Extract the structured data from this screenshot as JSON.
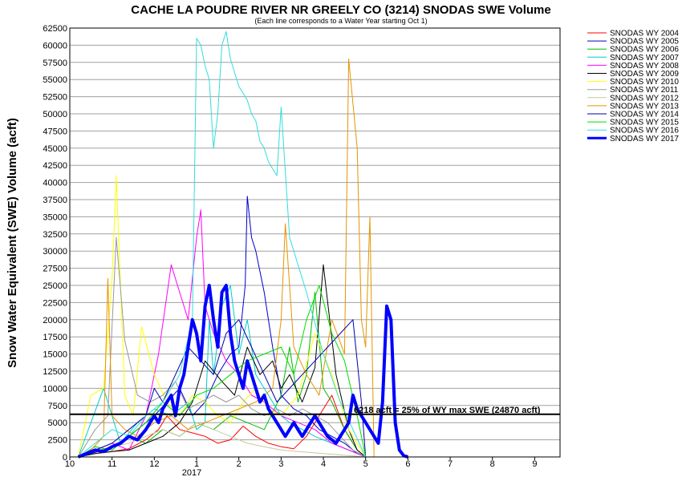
{
  "chart_data": {
    "type": "line",
    "title": "CACHE LA POUDRE RIVER NR GREELY CO (3214) SNODAS SWE Volume",
    "subtitle": "(Each line corresponds to a Water Year starting Oct 1)",
    "ylabel": "Snow Water Equivalent (SWE) Volume (acft)",
    "xlabel": "",
    "ylim": [
      0,
      62500
    ],
    "yticks": [
      0,
      2500,
      5000,
      7500,
      10000,
      12500,
      15000,
      17500,
      20000,
      22500,
      25000,
      27500,
      30000,
      32500,
      35000,
      37500,
      40000,
      42500,
      45000,
      47500,
      50000,
      52500,
      55000,
      57500,
      60000,
      62500
    ],
    "xlim": [
      0,
      11.6
    ],
    "xticks": [
      {
        "pos": 0,
        "label": "10"
      },
      {
        "pos": 1,
        "label": "11"
      },
      {
        "pos": 2,
        "label": "12"
      },
      {
        "pos": 3,
        "label": "1"
      },
      {
        "pos": 4,
        "label": "2"
      },
      {
        "pos": 5,
        "label": "3"
      },
      {
        "pos": 6,
        "label": "4"
      },
      {
        "pos": 7,
        "label": "5"
      },
      {
        "pos": 8,
        "label": "6"
      },
      {
        "pos": 9,
        "label": "7"
      },
      {
        "pos": 10,
        "label": "8"
      },
      {
        "pos": 11,
        "label": "9"
      }
    ],
    "x_secondary_label": "2017",
    "grid": true,
    "legend_placement": "right",
    "threshold": {
      "value": 6218,
      "label": "6218 acft = 25% of WY max SWE (24870 acft)"
    },
    "series": [
      {
        "name": "SNODAS WY 2004",
        "color": "#ff0000",
        "width": 1,
        "x": [
          0.2,
          0.6,
          1.0,
          1.4,
          1.8,
          2.1,
          2.3,
          2.6,
          2.9,
          3.2,
          3.5,
          3.8,
          4.1,
          4.4,
          4.7,
          5.0,
          5.3,
          5.6,
          5.9,
          6.2,
          6.5,
          6.8,
          7.0
        ],
        "y": [
          0,
          500,
          800,
          1200,
          2500,
          4000,
          6000,
          4000,
          3500,
          3000,
          2000,
          2500,
          4500,
          3000,
          2000,
          1500,
          1200,
          3000,
          6000,
          9000,
          4000,
          1000,
          0
        ]
      },
      {
        "name": "SNODAS WY 2005",
        "color": "#0000cc",
        "width": 1,
        "x": [
          0.2,
          0.8,
          1.2,
          1.6,
          2.0,
          2.3,
          2.6,
          2.9,
          3.2,
          3.5,
          3.8,
          4.0,
          4.15,
          4.2,
          4.3,
          4.4,
          4.6,
          4.8,
          5.0,
          5.3,
          5.6,
          5.9,
          6.2,
          6.5,
          6.8,
          7.0
        ],
        "y": [
          0,
          1000,
          2000,
          4000,
          6000,
          8000,
          10000,
          6000,
          8000,
          12000,
          15000,
          16000,
          25000,
          38000,
          32000,
          30000,
          24000,
          16000,
          9000,
          7000,
          6000,
          4000,
          3000,
          2000,
          500,
          0
        ]
      },
      {
        "name": "SNODAS WY 2006",
        "color": "#00bb00",
        "width": 1,
        "x": [
          0.2,
          0.6,
          1.0,
          1.4,
          1.8,
          2.2,
          2.6,
          3.0,
          3.4,
          3.8,
          4.2,
          4.6,
          5.0,
          5.2,
          5.4,
          5.6,
          5.8,
          6.0,
          6.2,
          6.5,
          6.8,
          7.0
        ],
        "y": [
          0,
          1500,
          1000,
          3000,
          2000,
          4000,
          3000,
          5000,
          4000,
          6000,
          5000,
          4000,
          9000,
          16000,
          8000,
          12000,
          24000,
          10000,
          8000,
          4000,
          1000,
          0
        ]
      },
      {
        "name": "SNODAS WY 2007",
        "color": "#00cccc",
        "width": 1,
        "x": [
          0.2,
          0.8,
          1.2,
          1.6,
          2.0,
          2.4,
          2.8,
          3.0,
          3.2,
          3.3,
          3.4,
          3.6,
          3.8,
          4.0,
          4.2,
          4.4,
          4.6,
          4.8,
          5.0,
          5.2,
          5.5,
          5.8,
          6.2,
          6.6,
          7.0
        ],
        "y": [
          0,
          10000,
          2000,
          5000,
          7000,
          6000,
          8000,
          4000,
          5000,
          20000,
          12000,
          22000,
          25000,
          15000,
          20000,
          12000,
          10000,
          8000,
          6000,
          5000,
          4000,
          3000,
          2000,
          1000,
          0
        ]
      },
      {
        "name": "SNODAS WY 2008",
        "color": "#ff00ff",
        "width": 1,
        "x": [
          0.2,
          0.6,
          1.0,
          1.4,
          1.8,
          2.1,
          2.4,
          2.6,
          2.8,
          3.0,
          3.1,
          3.2,
          3.4,
          3.7,
          4.0,
          4.3,
          4.6,
          5.0,
          5.4,
          5.8,
          6.2,
          6.6,
          7.0
        ],
        "y": [
          0,
          1000,
          2000,
          1000,
          6000,
          15000,
          28000,
          24000,
          20000,
          32000,
          36000,
          22000,
          18000,
          14000,
          12000,
          9000,
          8000,
          6000,
          5000,
          4000,
          2000,
          1000,
          0
        ]
      },
      {
        "name": "SNODAS WY 2009",
        "color": "#000000",
        "width": 1,
        "x": [
          0.2,
          0.6,
          1.0,
          1.4,
          1.8,
          2.2,
          2.6,
          2.9,
          3.2,
          3.6,
          3.9,
          4.2,
          4.5,
          4.8,
          5.0,
          5.2,
          5.5,
          5.8,
          6.0,
          6.3,
          6.6,
          6.8,
          7.0
        ],
        "y": [
          0,
          500,
          800,
          1000,
          2000,
          3000,
          5000,
          8000,
          14000,
          11000,
          9000,
          16000,
          12000,
          14000,
          10000,
          12000,
          8000,
          13000,
          28000,
          12000,
          4000,
          1000,
          0
        ]
      },
      {
        "name": "SNODAS WY 2010",
        "color": "#ffff00",
        "width": 1,
        "x": [
          0.2,
          0.5,
          0.8,
          1.0,
          1.1,
          1.3,
          1.5,
          1.7,
          2.0,
          2.3,
          2.6,
          2.9,
          3.2,
          3.5,
          3.8,
          4.1,
          4.4,
          4.7,
          5.0,
          5.4,
          5.8,
          6.2,
          6.6,
          7.0
        ],
        "y": [
          0,
          9000,
          10000,
          26000,
          41000,
          9000,
          6000,
          19000,
          12000,
          8000,
          6000,
          9000,
          8000,
          6000,
          5000,
          8000,
          10000,
          7000,
          6000,
          9000,
          18000,
          12000,
          4000,
          0
        ]
      },
      {
        "name": "SNODAS WY 2011",
        "color": "#999999",
        "width": 1,
        "x": [
          0.2,
          0.6,
          0.9,
          1.1,
          1.3,
          1.6,
          1.9,
          2.2,
          2.5,
          2.8,
          3.1,
          3.4,
          3.7,
          4.0,
          4.3,
          4.6,
          4.9,
          5.2,
          5.5,
          5.8,
          6.1,
          6.4,
          6.7,
          7.0
        ],
        "y": [
          0,
          4000,
          6000,
          32000,
          17000,
          9000,
          8000,
          9000,
          11000,
          7000,
          8000,
          9000,
          8000,
          9000,
          7000,
          6000,
          7000,
          6000,
          7000,
          6000,
          5000,
          3000,
          1000,
          0
        ]
      },
      {
        "name": "SNODAS WY 2012",
        "color": "#c8c8a0",
        "width": 1,
        "x": [
          0.2,
          0.6,
          1.0,
          1.4,
          1.8,
          2.2,
          2.6,
          3.0,
          3.4,
          3.8,
          4.2,
          4.6,
          5.0,
          5.4,
          5.8,
          6.2,
          6.6,
          7.0
        ],
        "y": [
          0,
          800,
          1500,
          2000,
          3000,
          4000,
          3000,
          5000,
          4000,
          3000,
          2000,
          1500,
          1000,
          800,
          600,
          400,
          200,
          0
        ]
      },
      {
        "name": "SNODAS WY 2013",
        "color": "#e69500",
        "width": 1,
        "x": [
          0.2,
          0.5,
          0.8,
          0.9,
          1.0,
          1.3,
          1.6,
          2.0,
          2.4,
          2.8,
          3.2,
          3.6,
          4.0,
          4.4,
          4.8,
          5.0,
          5.1,
          5.3,
          5.6,
          5.9,
          6.2,
          6.5,
          6.6,
          6.8,
          6.9,
          7.0,
          7.1,
          7.2
        ],
        "y": [
          0,
          1000,
          3000,
          26000,
          6000,
          4000,
          3000,
          5000,
          6000,
          4000,
          5000,
          6000,
          7000,
          8000,
          10000,
          20000,
          34000,
          16000,
          12000,
          9000,
          20000,
          15000,
          58000,
          45000,
          20000,
          16000,
          35000,
          0
        ]
      },
      {
        "name": "SNODAS WY 2014",
        "color": "#0000aa",
        "width": 1,
        "x": [
          0.2,
          0.6,
          1.0,
          1.4,
          1.8,
          2.0,
          2.2,
          2.5,
          2.8,
          3.1,
          3.4,
          3.7,
          4.0,
          4.3,
          4.6,
          4.9,
          5.2,
          5.5,
          5.8,
          6.1,
          6.4,
          6.7,
          6.9,
          7.0
        ],
        "y": [
          0,
          1000,
          2000,
          4000,
          6000,
          10000,
          8000,
          12000,
          16000,
          14000,
          12000,
          18000,
          20000,
          16000,
          12000,
          8000,
          10000,
          12000,
          14000,
          16000,
          18000,
          20000,
          8000,
          0
        ]
      },
      {
        "name": "SNODAS WY 2015",
        "color": "#00dd00",
        "width": 1,
        "x": [
          0.2,
          0.6,
          1.0,
          1.4,
          1.8,
          2.2,
          2.6,
          3.0,
          3.4,
          3.8,
          4.2,
          4.6,
          5.0,
          5.3,
          5.6,
          5.9,
          6.2,
          6.5,
          6.8,
          7.0
        ],
        "y": [
          0,
          800,
          1500,
          3000,
          5000,
          8000,
          6000,
          9000,
          10000,
          12000,
          14000,
          15000,
          16000,
          12000,
          20000,
          25000,
          18000,
          14000,
          6000,
          0
        ]
      },
      {
        "name": "SNODAS WY 2016",
        "color": "#33dddd",
        "width": 1,
        "x": [
          0.2,
          0.6,
          1.0,
          1.4,
          1.8,
          2.2,
          2.6,
          2.9,
          3.0,
          3.1,
          3.2,
          3.3,
          3.4,
          3.5,
          3.6,
          3.7,
          3.8,
          3.9,
          4.0,
          4.1,
          4.2,
          4.3,
          4.4,
          4.5,
          4.6,
          4.7,
          4.8,
          4.9,
          5.0,
          5.2,
          5.6,
          6.0,
          6.4,
          7.0
        ],
        "y": [
          0,
          2000,
          4000,
          3000,
          6000,
          8000,
          12000,
          20000,
          61000,
          60000,
          57000,
          55000,
          45000,
          50000,
          60000,
          62000,
          58000,
          56000,
          54000,
          53000,
          52000,
          50000,
          49000,
          46000,
          45000,
          43000,
          42000,
          41000,
          51000,
          32000,
          24000,
          15000,
          8000,
          0
        ]
      },
      {
        "name": "SNODAS WY 2017",
        "color": "#0000ff",
        "width": 4,
        "x": [
          0.2,
          0.4,
          0.6,
          0.8,
          1.0,
          1.2,
          1.4,
          1.6,
          1.8,
          2.0,
          2.1,
          2.2,
          2.3,
          2.4,
          2.5,
          2.6,
          2.7,
          2.8,
          2.9,
          3.0,
          3.1,
          3.2,
          3.3,
          3.4,
          3.5,
          3.6,
          3.7,
          3.8,
          3.9,
          4.0,
          4.1,
          4.2,
          4.3,
          4.4,
          4.5,
          4.6,
          4.7,
          4.8,
          4.9,
          5.0,
          5.1,
          5.2,
          5.3,
          5.4,
          5.5,
          5.6,
          5.7,
          5.8,
          5.9,
          6.0,
          6.1,
          6.2,
          6.3,
          6.4,
          6.5,
          6.6,
          6.7,
          6.8,
          6.9,
          7.0,
          7.1,
          7.2,
          7.3,
          7.4,
          7.5,
          7.6,
          7.7,
          7.8,
          7.9,
          8.0
        ],
        "y": [
          0,
          500,
          1000,
          800,
          1500,
          2000,
          3000,
          2500,
          4000,
          6000,
          5000,
          7000,
          8000,
          9000,
          6000,
          10000,
          12000,
          16000,
          20000,
          18000,
          14000,
          22000,
          25000,
          20000,
          16000,
          24000,
          25000,
          18000,
          14000,
          12000,
          10000,
          14000,
          12000,
          10000,
          8000,
          9000,
          7000,
          6000,
          5000,
          4000,
          3000,
          4000,
          5000,
          4000,
          3000,
          4000,
          5000,
          6000,
          5000,
          4000,
          3000,
          2500,
          2000,
          3000,
          4000,
          5000,
          9000,
          7000,
          6000,
          5000,
          4000,
          3000,
          2000,
          8000,
          22000,
          20000,
          5000,
          1000,
          200,
          0
        ]
      }
    ]
  }
}
